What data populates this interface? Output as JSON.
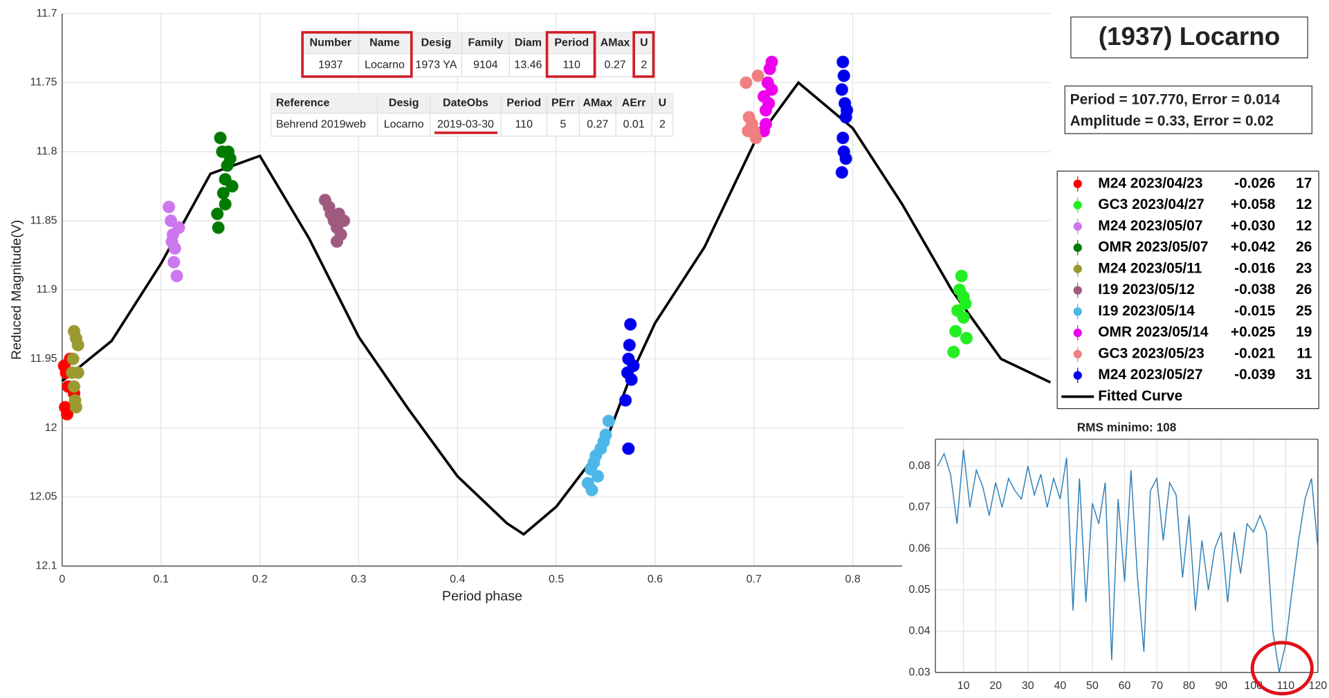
{
  "title": "(1937) Locarno",
  "fit_info": [
    "Period =  107.770, Error = 0.014",
    "Amplitude = 0.33, Error = 0.02"
  ],
  "table1": {
    "header": [
      "Number",
      "Name",
      "Desig",
      "Family",
      "Diam",
      "Period",
      "AMax",
      "U"
    ],
    "rows": [
      [
        "1937",
        "Locarno",
        "1973 YA",
        "9104",
        "13.46",
        "110",
        "0.27",
        "2"
      ]
    ]
  },
  "table2": {
    "header": [
      "Reference",
      "Desig",
      "DateObs",
      "Period",
      "PErr",
      "AMax",
      "AErr",
      "U"
    ],
    "rows": [
      [
        "Behrend 2019web",
        "Locarno",
        "2019-03-30",
        "110",
        "5",
        "0.27",
        "0.01",
        "2"
      ]
    ]
  },
  "chart_data": [
    {
      "type": "scatter",
      "xlabel": "Period phase",
      "ylabel": "Reduced Magnitude(V)",
      "xlim": [
        0,
        1
      ],
      "ylim": [
        11.7,
        12.1
      ],
      "y_reversed": true,
      "grid": true,
      "xticks": [
        0,
        0.1,
        0.2,
        0.3,
        0.4,
        0.5,
        0.6,
        0.7,
        0.8
      ],
      "yticks": [
        11.7,
        11.75,
        11.8,
        11.85,
        11.9,
        11.95,
        12,
        12.05,
        12.1
      ],
      "series": [
        {
          "name": "M24 2023/04/23",
          "offset": "-0.026",
          "count": 17,
          "color": "#ff0000",
          "mode": "markers",
          "x": [
            0.002,
            0.004,
            0.006,
            0.003,
            0.008,
            0.012,
            0.005
          ],
          "values": [
            11.955,
            11.96,
            11.97,
            11.985,
            11.95,
            11.975,
            11.99
          ]
        },
        {
          "name": "GC3 2023/04/27",
          "offset": "+0.058",
          "count": 12,
          "color": "#22ee22",
          "mode": "markers",
          "x": [
            0.902,
            0.904,
            0.906,
            0.908,
            0.91,
            0.912,
            0.914,
            0.912,
            0.915
          ],
          "values": [
            11.945,
            11.93,
            11.915,
            11.9,
            11.89,
            11.905,
            11.91,
            11.92,
            11.935
          ]
        },
        {
          "name": "M24 2023/05/07",
          "offset": "+0.030",
          "count": 12,
          "color": "#cc77ee",
          "mode": "markers",
          "x": [
            0.108,
            0.11,
            0.112,
            0.114,
            0.113,
            0.116,
            0.118,
            0.111
          ],
          "values": [
            11.84,
            11.85,
            11.86,
            11.87,
            11.88,
            11.89,
            11.855,
            11.865
          ]
        },
        {
          "name": "OMR 2023/05/07",
          "offset": "+0.042",
          "count": 26,
          "color": "#007a00",
          "mode": "markers",
          "x": [
            0.158,
            0.157,
            0.16,
            0.162,
            0.163,
            0.165,
            0.167,
            0.17,
            0.172,
            0.165,
            0.168
          ],
          "values": [
            11.855,
            11.845,
            11.79,
            11.8,
            11.83,
            11.82,
            11.81,
            11.805,
            11.825,
            11.838,
            11.8
          ]
        },
        {
          "name": "M24 2023/05/11",
          "offset": "-0.016",
          "count": 23,
          "color": "#9a9a30",
          "mode": "markers",
          "x": [
            0.012,
            0.014,
            0.016,
            0.01,
            0.012,
            0.014,
            0.016,
            0.011,
            0.013
          ],
          "values": [
            11.93,
            11.935,
            11.94,
            11.96,
            11.97,
            11.985,
            11.96,
            11.95,
            11.98
          ]
        },
        {
          "name": "I19 2023/05/12",
          "offset": "-0.038",
          "count": 26,
          "color": "#a05a80",
          "mode": "markers",
          "x": [
            0.266,
            0.27,
            0.272,
            0.275,
            0.278,
            0.28,
            0.282,
            0.285,
            0.278
          ],
          "values": [
            11.835,
            11.84,
            11.845,
            11.85,
            11.855,
            11.845,
            11.86,
            11.85,
            11.865
          ]
        },
        {
          "name": "I19 2023/05/14",
          "offset": "-0.015",
          "count": 25,
          "color": "#4db8e8",
          "mode": "markers",
          "x": [
            0.532,
            0.535,
            0.538,
            0.54,
            0.542,
            0.545,
            0.548,
            0.55,
            0.553,
            0.536
          ],
          "values": [
            12.04,
            12.03,
            12.025,
            12.02,
            12.035,
            12.015,
            12.01,
            12.005,
            11.995,
            12.045
          ]
        },
        {
          "name": "OMR 2023/05/14",
          "offset": "+0.025",
          "count": 19,
          "color": "#ee00ee",
          "mode": "markers",
          "x": [
            0.71,
            0.712,
            0.714,
            0.716,
            0.718,
            0.712,
            0.715,
            0.71,
            0.718
          ],
          "values": [
            11.76,
            11.77,
            11.75,
            11.74,
            11.735,
            11.78,
            11.765,
            11.785,
            11.755
          ]
        },
        {
          "name": "GC3 2023/05/23",
          "offset": "-0.021",
          "count": 11,
          "color": "#f08080",
          "mode": "markers",
          "x": [
            0.692,
            0.695,
            0.698,
            0.7,
            0.702,
            0.704,
            0.694
          ],
          "values": [
            11.75,
            11.775,
            11.78,
            11.785,
            11.79,
            11.745,
            11.785
          ]
        },
        {
          "name": "M24 2023/05/27",
          "offset": "-0.039",
          "count": 31,
          "color": "#0000ee",
          "mode": "markers",
          "x": [
            0.57,
            0.572,
            0.573,
            0.574,
            0.575,
            0.576,
            0.578,
            0.573,
            0.789,
            0.79,
            0.791,
            0.792,
            0.793,
            0.79,
            0.791,
            0.793,
            0.789,
            0.794
          ],
          "values": [
            11.98,
            11.96,
            11.95,
            11.94,
            11.925,
            11.965,
            11.955,
            12.015,
            11.755,
            11.735,
            11.745,
            11.765,
            11.775,
            11.79,
            11.8,
            11.805,
            11.815,
            11.77
          ]
        },
        {
          "name": "Fitted Curve",
          "color": "#000000",
          "mode": "line",
          "x": [
            0,
            0.05,
            0.1,
            0.15,
            0.2,
            0.25,
            0.3,
            0.35,
            0.4,
            0.45,
            0.467,
            0.5,
            0.55,
            0.576,
            0.6,
            0.65,
            0.7,
            0.745,
            0.8,
            0.85,
            0.9,
            0.95,
            1
          ],
          "values": [
            11.966,
            11.937,
            11.881,
            11.816,
            11.803,
            11.863,
            11.934,
            11.986,
            12.035,
            12.069,
            12.077,
            12.057,
            12.01,
            11.961,
            11.924,
            11.869,
            11.794,
            11.75,
            11.783,
            11.838,
            11.9,
            11.95,
            11.967
          ]
        }
      ]
    },
    {
      "type": "line",
      "title": "RMS minimo: 108",
      "color": "#2e7fb8",
      "grid": true,
      "xlim": [
        1.3,
        120
      ],
      "ylim": [
        0.03,
        0.0865
      ],
      "xticks": [
        10,
        20,
        30,
        40,
        50,
        60,
        70,
        80,
        90,
        100,
        110,
        120
      ],
      "yticks": [
        0.03,
        0.04,
        0.05,
        0.06,
        0.07,
        0.08
      ],
      "x": [
        2,
        4,
        6,
        8,
        10,
        12,
        14,
        16,
        18,
        20,
        22,
        24,
        26,
        28,
        30,
        32,
        34,
        36,
        38,
        40,
        42,
        44,
        46,
        48,
        50,
        52,
        54,
        56,
        58,
        60,
        62,
        64,
        66,
        68,
        70,
        72,
        74,
        76,
        78,
        80,
        82,
        84,
        86,
        88,
        90,
        92,
        94,
        96,
        98,
        100,
        102,
        104,
        106,
        108,
        110,
        112,
        114,
        116,
        118,
        120
      ],
      "values": [
        0.08,
        0.083,
        0.078,
        0.066,
        0.084,
        0.07,
        0.079,
        0.075,
        0.068,
        0.076,
        0.07,
        0.077,
        0.074,
        0.072,
        0.08,
        0.073,
        0.078,
        0.07,
        0.077,
        0.072,
        0.082,
        0.045,
        0.077,
        0.047,
        0.071,
        0.066,
        0.076,
        0.033,
        0.072,
        0.052,
        0.079,
        0.053,
        0.035,
        0.074,
        0.077,
        0.062,
        0.076,
        0.073,
        0.053,
        0.068,
        0.045,
        0.062,
        0.05,
        0.06,
        0.064,
        0.047,
        0.064,
        0.054,
        0.066,
        0.064,
        0.068,
        0.064,
        0.04,
        0.03,
        0.037,
        0.05,
        0.062,
        0.072,
        0.077,
        0.06
      ]
    }
  ]
}
